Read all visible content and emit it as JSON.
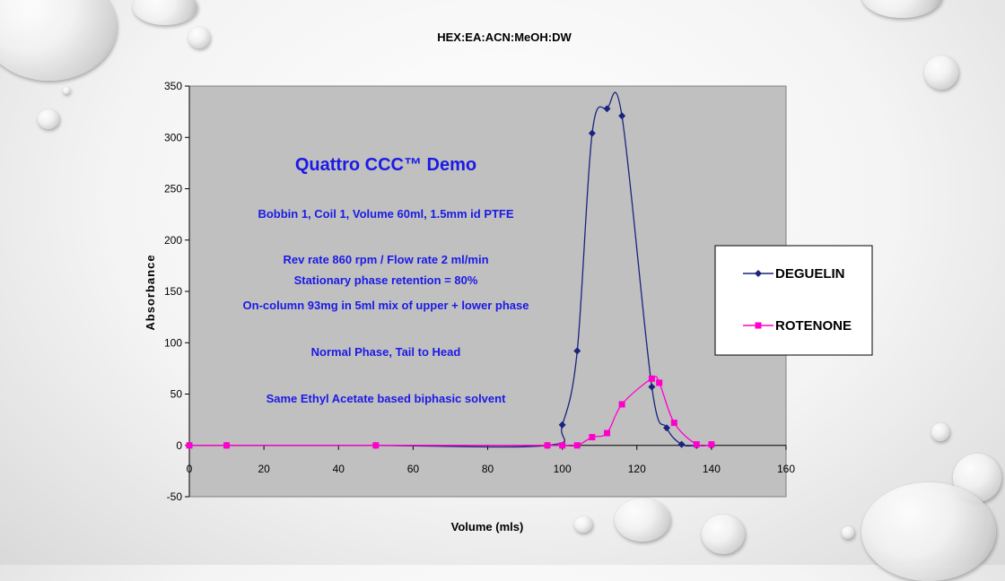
{
  "chart_data": {
    "type": "line",
    "title": "HEX:EA:ACN:MeOH:DW",
    "xlabel": "Volume (mls)",
    "ylabel": "Absorbance",
    "xlim": [
      0,
      160
    ],
    "ylim": [
      -50,
      350
    ],
    "x_ticks": [
      0,
      20,
      40,
      60,
      80,
      100,
      120,
      140,
      160
    ],
    "y_ticks": [
      -50,
      0,
      50,
      100,
      150,
      200,
      250,
      300,
      350
    ],
    "grid": false,
    "legend_position": "right",
    "plot_background": "#c0c0c0",
    "annotations": [
      "Quattro CCC™ Demo",
      "Bobbin 1, Coil 1, Volume 60ml, 1.5mm id PTFE",
      "Rev rate 860 rpm / Flow rate 2 ml/min",
      "Stationary phase retention = 80%",
      "On-column 93mg in 5ml mix of upper + lower phase",
      "Normal Phase, Tail to Head",
      "Same Ethyl Acetate based biphasic solvent"
    ],
    "series": [
      {
        "name": "DEGUELIN",
        "color": "#1a237e",
        "marker": "diamond",
        "points": [
          [
            0,
            0
          ],
          [
            10,
            0
          ],
          [
            50,
            0
          ],
          [
            96,
            0
          ],
          [
            100,
            20
          ],
          [
            104,
            92
          ],
          [
            108,
            304
          ],
          [
            112,
            328
          ],
          [
            116,
            321
          ],
          [
            124,
            57
          ],
          [
            128,
            17
          ],
          [
            132,
            1
          ],
          [
            136,
            0
          ],
          [
            140,
            0
          ]
        ]
      },
      {
        "name": "ROTENONE",
        "color": "#ff00cc",
        "marker": "square",
        "points": [
          [
            0,
            0
          ],
          [
            10,
            0
          ],
          [
            50,
            0
          ],
          [
            96,
            0
          ],
          [
            100,
            0
          ],
          [
            104,
            0
          ],
          [
            108,
            8
          ],
          [
            112,
            12
          ],
          [
            116,
            40
          ],
          [
            124,
            65
          ],
          [
            126,
            61
          ],
          [
            130,
            22
          ],
          [
            136,
            1
          ],
          [
            140,
            1
          ]
        ]
      }
    ]
  }
}
